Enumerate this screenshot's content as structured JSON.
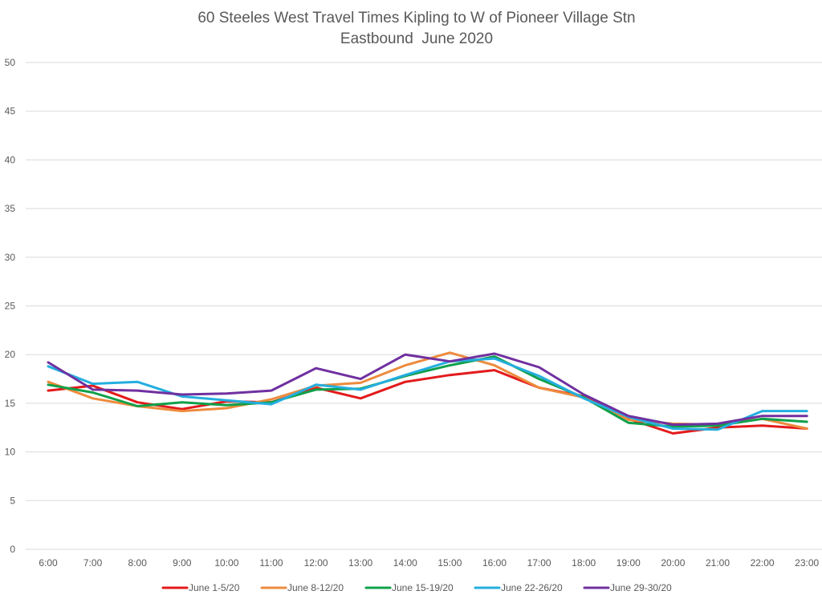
{
  "chart_data": {
    "type": "line",
    "title": "60 Steeles West Travel Times Kipling to W of Pioneer Village Stn",
    "subtitle": "Eastbound  June 2020",
    "xlabel": "",
    "ylabel": "",
    "ylim": [
      0,
      50
    ],
    "yticks": [
      "0",
      "5",
      "10",
      "15",
      "20",
      "25",
      "30",
      "35",
      "40",
      "45",
      "50"
    ],
    "grid": true,
    "legend": "bottom",
    "categories": [
      "6:00",
      "7:00",
      "8:00",
      "9:00",
      "10:00",
      "11:00",
      "12:00",
      "13:00",
      "14:00",
      "15:00",
      "16:00",
      "17:00",
      "18:00",
      "19:00",
      "20:00",
      "21:00",
      "22:00",
      "23:00"
    ],
    "series": [
      {
        "name": "June 1-5/20",
        "color": "#E31A1C",
        "values": [
          16.3,
          16.8,
          15.1,
          14.4,
          15.2,
          15.1,
          16.6,
          15.5,
          17.2,
          17.9,
          18.4,
          16.6,
          15.7,
          13.4,
          11.9,
          12.5,
          12.7,
          12.4
        ]
      },
      {
        "name": "June 8-12/20",
        "color": "#ED8B3D",
        "values": [
          17.2,
          15.5,
          14.7,
          14.2,
          14.5,
          15.4,
          16.8,
          17.1,
          18.9,
          20.2,
          18.9,
          16.6,
          15.6,
          13.3,
          12.9,
          12.8,
          13.4,
          12.4
        ]
      },
      {
        "name": "June 15-19/20",
        "color": "#10A04A",
        "values": [
          16.9,
          16.1,
          14.7,
          15.1,
          14.8,
          15.1,
          16.4,
          16.5,
          17.8,
          18.9,
          19.8,
          17.5,
          15.6,
          13.0,
          12.6,
          12.7,
          13.4,
          13.1
        ]
      },
      {
        "name": "June 22-26/20",
        "color": "#24AEDF",
        "values": [
          18.8,
          17.0,
          17.2,
          15.7,
          15.3,
          14.9,
          16.9,
          16.4,
          17.9,
          19.3,
          19.6,
          17.8,
          15.5,
          13.6,
          12.4,
          12.3,
          14.2,
          14.2
        ]
      },
      {
        "name": "June 29-30/20",
        "color": "#7030A0",
        "values": [
          19.2,
          16.4,
          16.3,
          15.9,
          16.0,
          16.3,
          18.6,
          17.5,
          20.0,
          19.3,
          20.1,
          18.7,
          15.9,
          13.7,
          12.8,
          12.9,
          13.7,
          13.7
        ]
      }
    ]
  }
}
